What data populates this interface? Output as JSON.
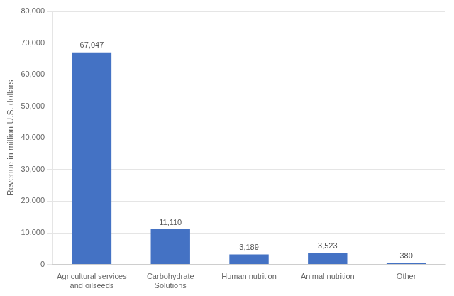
{
  "chart_data": {
    "type": "bar",
    "categories": [
      "Agricultural services\nand oilseeds",
      "Carbohydrate\nSolutions",
      "Human nutrition",
      "Animal nutrition",
      "Other"
    ],
    "values": [
      67047,
      11110,
      3189,
      3523,
      380
    ],
    "value_labels": [
      "67,047",
      "11,110",
      "3,189",
      "3,523",
      "380"
    ],
    "data_labels": true,
    "color": "#4472c4",
    "ylabel": "Revenue in million U.S. dollars",
    "ylim": [
      0,
      80000
    ],
    "yticks": [
      0,
      {
        "value": 10000,
        "label": "10,000"
      },
      {
        "value": 20000,
        "label": "20,000"
      },
      {
        "value": 30000,
        "label": "30,000"
      },
      {
        "value": 40000,
        "label": "40,000"
      },
      {
        "value": 50000,
        "label": "50,000"
      },
      {
        "value": 60000,
        "label": "60,000"
      },
      {
        "value": 70000,
        "label": "70,000"
      },
      {
        "value": 80000,
        "label": "80,000"
      }
    ],
    "grid": true
  }
}
